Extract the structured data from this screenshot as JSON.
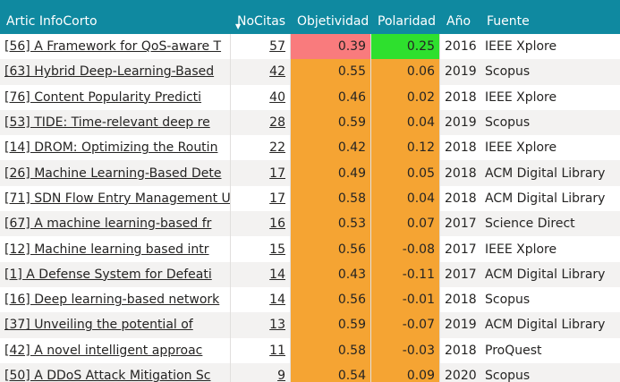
{
  "columns": [
    "Artic InfoCorto",
    "NoCitas",
    "Objetividad",
    "Polaridad",
    "Año",
    "Fuente"
  ],
  "rows": [
    {
      "title": "[56] A Framework for QoS-aware T",
      "citas": "57",
      "obj": "0.39",
      "pol": "0.25",
      "year": "2016",
      "source": "IEEE Xplore",
      "obj_color": "red",
      "pol_color": "green"
    },
    {
      "title": "[63] Hybrid Deep-Learning-Based",
      "citas": "42",
      "obj": "0.55",
      "pol": "0.06",
      "year": "2019",
      "source": "Scopus",
      "obj_color": "orange",
      "pol_color": "orange"
    },
    {
      "title": "[76] Content Popularity Predicti",
      "citas": "40",
      "obj": "0.46",
      "pol": "0.02",
      "year": "2018",
      "source": "IEEE Xplore",
      "obj_color": "orange",
      "pol_color": "orange"
    },
    {
      "title": "[53] TIDE: Time-relevant deep re",
      "citas": "28",
      "obj": "0.59",
      "pol": "0.04",
      "year": "2019",
      "source": "Scopus",
      "obj_color": "orange",
      "pol_color": "orange"
    },
    {
      "title": "[14] DROM: Optimizing the Routin",
      "citas": "22",
      "obj": "0.42",
      "pol": "0.12",
      "year": "2018",
      "source": "IEEE Xplore",
      "obj_color": "orange",
      "pol_color": "orange"
    },
    {
      "title": "[26] Machine Learning-Based Dete",
      "citas": "17",
      "obj": "0.49",
      "pol": "0.05",
      "year": "2018",
      "source": "ACM Digital Library",
      "obj_color": "orange",
      "pol_color": "orange"
    },
    {
      "title": "[71] SDN Flow Entry Management U",
      "citas": "17",
      "obj": "0.58",
      "pol": "0.04",
      "year": "2018",
      "source": "ACM Digital Library",
      "obj_color": "orange",
      "pol_color": "orange"
    },
    {
      "title": "[67] A machine learning-based fr",
      "citas": "16",
      "obj": "0.53",
      "pol": "0.07",
      "year": "2017",
      "source": "Science Direct",
      "obj_color": "orange",
      "pol_color": "orange"
    },
    {
      "title": "[12] Machine learning based intr",
      "citas": "15",
      "obj": "0.56",
      "pol": "-0.08",
      "year": "2017",
      "source": "IEEE Xplore",
      "obj_color": "orange",
      "pol_color": "orange"
    },
    {
      "title": "[1] A Defense System for Defeati",
      "citas": "14",
      "obj": "0.43",
      "pol": "-0.11",
      "year": "2017",
      "source": "ACM Digital Library",
      "obj_color": "orange",
      "pol_color": "orange"
    },
    {
      "title": "[16] Deep learning-based network",
      "citas": "14",
      "obj": "0.56",
      "pol": "-0.01",
      "year": "2018",
      "source": "Scopus",
      "obj_color": "orange",
      "pol_color": "orange"
    },
    {
      "title": "[37] Unveiling the potential of",
      "citas": "13",
      "obj": "0.59",
      "pol": "-0.07",
      "year": "2019",
      "source": "ACM Digital Library",
      "obj_color": "orange",
      "pol_color": "orange"
    },
    {
      "title": "[42] A novel intelligent approac",
      "citas": "11",
      "obj": "0.58",
      "pol": "-0.03",
      "year": "2018",
      "source": "ProQuest",
      "obj_color": "orange",
      "pol_color": "orange"
    },
    {
      "title": "[50] A DDoS Attack Mitigation Sc",
      "citas": "9",
      "obj": "0.54",
      "pol": "0.09",
      "year": "2020",
      "source": "Scopus",
      "obj_color": "orange",
      "pol_color": "orange"
    }
  ]
}
